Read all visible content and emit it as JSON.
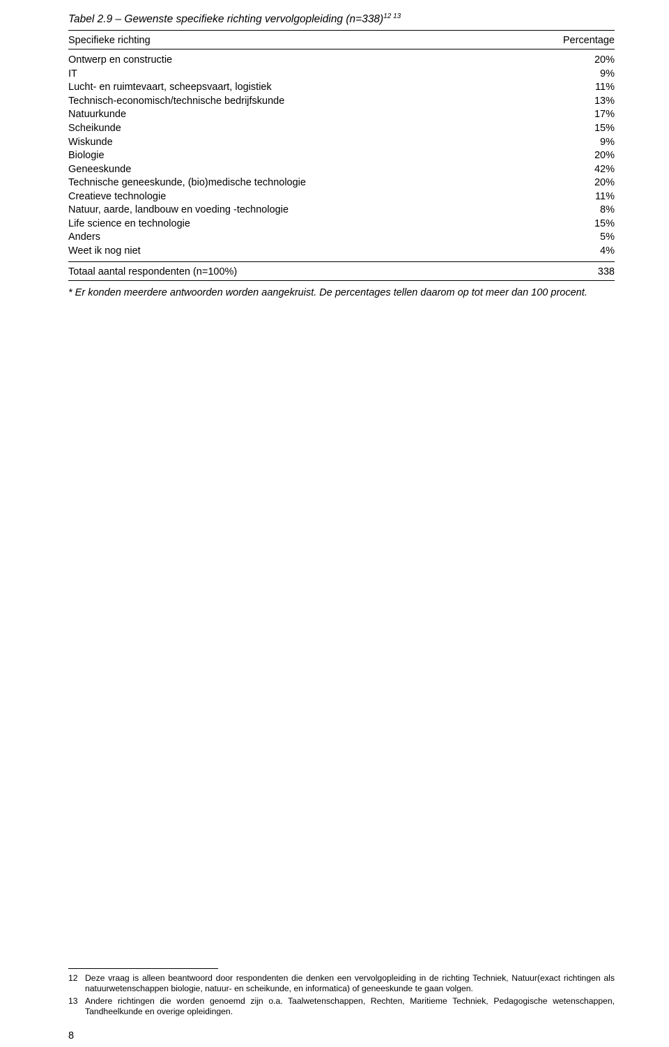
{
  "title_prefix": "Tabel 2.9 – Gewenste specifieke richting vervolgopleiding (n=338)",
  "title_sup": "12 13",
  "header": {
    "left": "Specifieke richting",
    "right": "Percentage"
  },
  "rows": [
    {
      "label": "Ontwerp en constructie",
      "value": "20%"
    },
    {
      "label": "IT",
      "value": "9%"
    },
    {
      "label": "Lucht- en ruimtevaart, scheepsvaart, logistiek",
      "value": "11%"
    },
    {
      "label": "Technisch-economisch/technische bedrijfskunde",
      "value": "13%"
    },
    {
      "label": "Natuurkunde",
      "value": "17%"
    },
    {
      "label": "Scheikunde",
      "value": "15%"
    },
    {
      "label": "Wiskunde",
      "value": "9%"
    },
    {
      "label": "Biologie",
      "value": "20%"
    },
    {
      "label": "Geneeskunde",
      "value": "42%"
    },
    {
      "label": "Technische geneeskunde, (bio)medische technologie",
      "value": "20%"
    },
    {
      "label": "Creatieve technologie",
      "value": "11%"
    },
    {
      "label": "Natuur, aarde, landbouw en voeding -technologie",
      "value": "8%"
    },
    {
      "label": "Life science en technologie",
      "value": "15%"
    },
    {
      "label": "Anders",
      "value": "5%"
    },
    {
      "label": "Weet ik nog niet",
      "value": "4%"
    }
  ],
  "total": {
    "label": "Totaal aantal respondenten (n=100%)",
    "value": "338"
  },
  "footnote_star": "* Er konden meerdere antwoorden worden aangekruist. De percentages tellen daarom op tot meer dan 100 procent.",
  "notes": [
    {
      "num": "12",
      "text": "Deze vraag is alleen beantwoord door respondenten die denken een vervolgopleiding in de richting Techniek, Natuur(exact richtingen als natuurwetenschappen biologie, natuur- en scheikunde, en informatica) of geneeskunde te gaan volgen."
    },
    {
      "num": "13",
      "text": "Andere richtingen die worden genoemd zijn o.a. Taalwetenschappen, Rechten, Maritieme Techniek, Pedagogische wetenschappen, Tandheelkunde en overige opleidingen."
    }
  ],
  "pagenum": "8"
}
